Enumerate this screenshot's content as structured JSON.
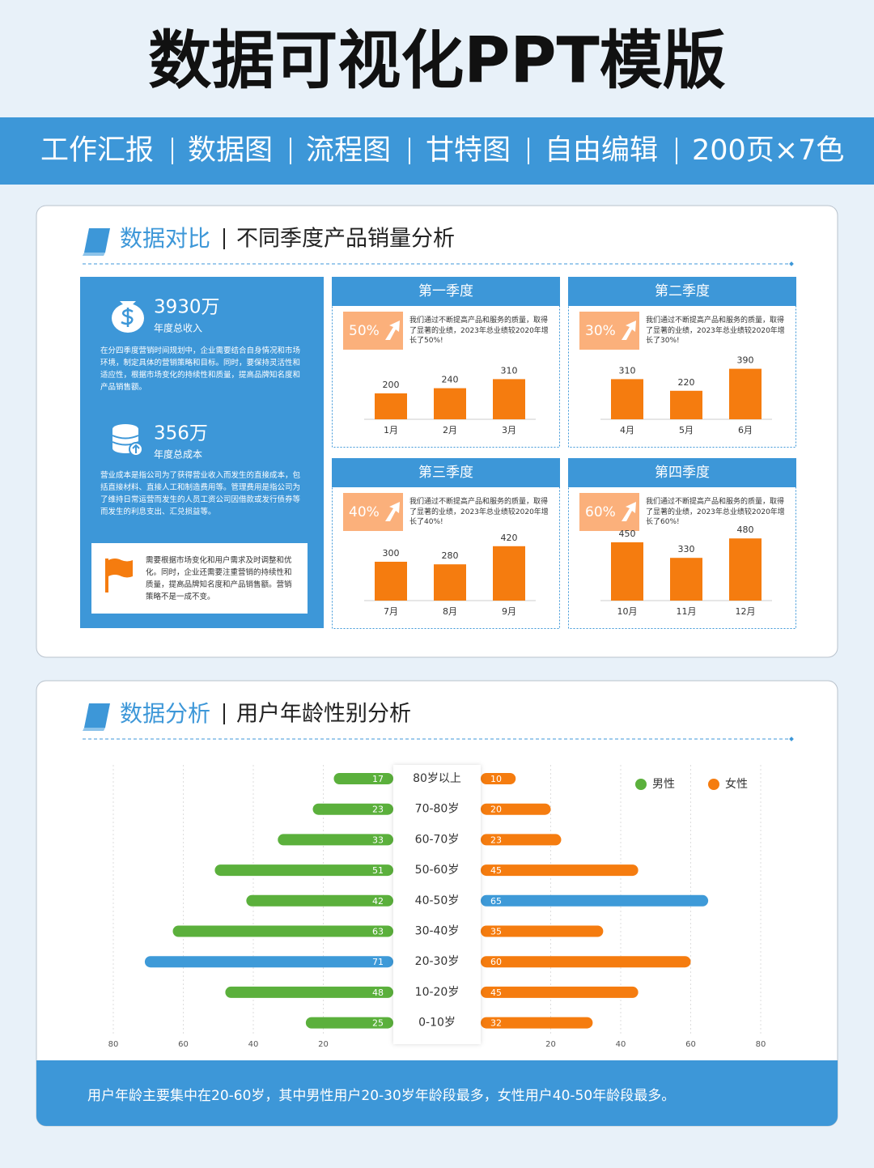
{
  "header": {
    "title": "数据可视化PPT模版",
    "tags": [
      "工作汇报",
      "数据图",
      "流程图",
      "甘特图",
      "自由编辑",
      "200页×7色"
    ]
  },
  "comparison": {
    "heading": "数据对比",
    "subheading": "不同季度产品销量分析",
    "stats": [
      {
        "value": "3930万",
        "label": "年度总收入",
        "text": "在分四季度营销时间规划中，企业需要结合自身情况和市场环境，制定具体的营销策略和目标。同时，要保持灵活性和适应性，根据市场变化的持续性和质量，提高品牌知名度和产品销售额。"
      },
      {
        "value": "356万",
        "label": "年度总成本",
        "text": "营业成本是指公司为了获得营业收入而发生的直接成本，包括直接材料、直接人工和制造费用等。管理费用是指公司为了维持日常运营而发生的人员工资公司因借款或发行债券等而发生的利息支出、汇兑损益等。"
      }
    ],
    "note": "需要根据市场变化和用户需求及时调整和优化。同时，企业还需要注重营销的持续性和质量，提高品牌知名度和产品销售额。营销策略不是一成不变。",
    "ylim": [
      0,
      500
    ],
    "bar_color": "#f57c0f",
    "quarters": [
      {
        "type": "bar",
        "title": "第一季度",
        "badge": "50%",
        "text": "我们通过不断提高产品和服务的质量，取得了显著的业绩，2023年总业绩较2020年增长了50%!",
        "categories": [
          "1月",
          "2月",
          "3月"
        ],
        "values": [
          200,
          240,
          310
        ]
      },
      {
        "type": "bar",
        "title": "第二季度",
        "badge": "30%",
        "text": "我们通过不断提高产品和服务的质量，取得了显著的业绩，2023年总业绩较2020年增长了30%!",
        "categories": [
          "4月",
          "5月",
          "6月"
        ],
        "values": [
          310,
          220,
          390
        ]
      },
      {
        "type": "bar",
        "title": "第三季度",
        "badge": "40%",
        "text": "我们通过不断提高产品和服务的质量，取得了显著的业绩，2023年总业绩较2020年增长了40%!",
        "categories": [
          "7月",
          "8月",
          "9月"
        ],
        "values": [
          300,
          280,
          420
        ]
      },
      {
        "type": "bar",
        "title": "第四季度",
        "badge": "60%",
        "text": "我们通过不断提高产品和服务的质量，取得了显著的业绩，2023年总业绩较2020年增长了60%!",
        "categories": [
          "10月",
          "11月",
          "12月"
        ],
        "values": [
          450,
          330,
          480
        ]
      }
    ]
  },
  "analysis": {
    "heading": "数据分析",
    "subheading": "用户年龄性别分析",
    "chart": {
      "type": "butterfly",
      "categories": [
        "80岁以上",
        "70-80岁",
        "60-70岁",
        "50-60岁",
        "40-50岁",
        "30-40岁",
        "20-30岁",
        "10-20岁",
        "0-10岁"
      ],
      "series": [
        {
          "name": "男性",
          "color": "#5bb03c",
          "values": [
            17,
            23,
            33,
            51,
            42,
            63,
            71,
            48,
            25
          ]
        },
        {
          "name": "女性",
          "color": "#f57c0f",
          "values": [
            10,
            20,
            23,
            45,
            65,
            35,
            60,
            45,
            32
          ]
        }
      ],
      "highlight_color": "#3e9ad8",
      "xlim": [
        0,
        80
      ],
      "xticks": [
        20,
        40,
        60,
        80
      ],
      "grid": true,
      "legend": "top-right"
    },
    "footer": "用户年龄主要集中在20-60岁，其中男性用户20-30岁年龄段最多，女性用户40-50年龄段最多。"
  }
}
